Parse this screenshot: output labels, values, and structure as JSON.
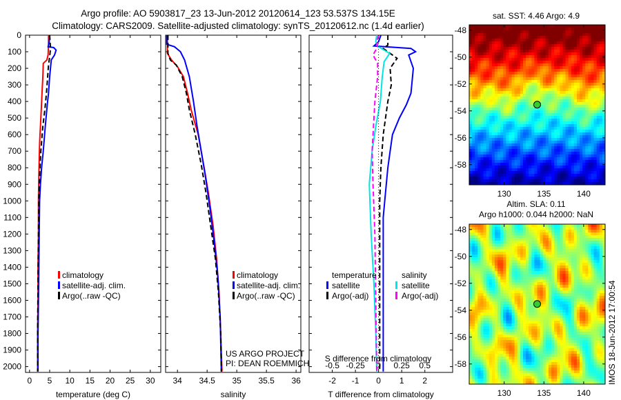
{
  "title": {
    "line1": "Argo profile: AO 5903817_23 13-Jun-2012 20120614_123 53.537S 134.15E",
    "line2": "Climatology: CARS2009. Satellite-adjusted climatology: synTS_20120612.nc (1.4d earlier)"
  },
  "colors": {
    "climatology": "#ff0000",
    "satellite": "#0000ff",
    "argo": "#000000",
    "sal_satellite": "#00e5e5",
    "sal_argo": "#ff00ff"
  },
  "credits": {
    "project": "US ARGO PROJECT",
    "pi": "PI: DEAN ROEMMICH",
    "stamp": "IMOS 18-Jun-2012 17:00:54"
  },
  "chart_data": [
    {
      "type": "line",
      "id": "temperature",
      "xlabel": "temperature (deg C)",
      "ylabel": "",
      "xlim": [
        -1,
        32.6
      ],
      "ylim": [
        0,
        2035
      ],
      "xticks": [
        0,
        5,
        10,
        15,
        20,
        25,
        30
      ],
      "yticks": [
        0,
        100,
        200,
        300,
        400,
        500,
        600,
        700,
        800,
        900,
        1000,
        1100,
        1200,
        1300,
        1400,
        1500,
        1600,
        1700,
        1800,
        1900,
        2000
      ],
      "legend": [
        "climatology",
        "satellite-adj. clim.",
        "Argo(..raw -QC)"
      ],
      "series": [
        {
          "name": "climatology",
          "color": "#ff0000",
          "dash": false,
          "x": [
            4.7,
            4.7,
            4.6,
            4.3,
            3.4,
            3.3,
            3.1,
            2.9,
            2.7,
            2.5,
            2.4,
            2.3,
            2.2,
            2.2,
            2.1,
            2.1,
            2.0,
            2.0,
            2.0
          ],
          "y": [
            0,
            60,
            120,
            150,
            170,
            250,
            350,
            450,
            550,
            650,
            750,
            850,
            1000,
            1200,
            1400,
            1600,
            1800,
            1950,
            2030
          ]
        },
        {
          "name": "satellite-adj. clim.",
          "color": "#0000ff",
          "dash": false,
          "x": [
            5.0,
            4.9,
            4.6,
            6.0,
            6.6,
            6.2,
            5.4,
            5.0,
            4.7,
            4.4,
            3.9,
            3.4,
            3.0,
            2.7,
            2.5,
            2.4,
            2.3,
            2.2,
            2.1,
            2.1
          ],
          "y": [
            0,
            40,
            70,
            75,
            90,
            120,
            150,
            250,
            350,
            420,
            550,
            700,
            800,
            900,
            1000,
            1200,
            1400,
            1600,
            1800,
            2030
          ]
        },
        {
          "name": "Argo(..raw -QC)",
          "color": "#000000",
          "dash": true,
          "x": [
            5.0,
            5.2,
            5.0,
            4.7,
            4.5,
            4.2,
            3.8,
            3.3,
            2.8,
            2.5,
            2.3,
            2.2,
            2.1,
            2.0,
            2.0
          ],
          "y": [
            0,
            80,
            130,
            180,
            250,
            350,
            450,
            550,
            700,
            850,
            1000,
            1200,
            1500,
            1800,
            2030
          ]
        }
      ]
    },
    {
      "type": "line",
      "id": "salinity",
      "xlabel": "salinity",
      "xlim": [
        33.8,
        36.08
      ],
      "ylim": [
        0,
        2035
      ],
      "xticks": [
        34,
        34.5,
        35,
        35.5,
        36
      ],
      "legend": [
        "climatology",
        "satellite-adj. clim.",
        "Argo(..raw -QC)"
      ],
      "series": [
        {
          "name": "climatology",
          "color": "#ff0000",
          "dash": false,
          "x": [
            33.83,
            33.83,
            33.9,
            34.0,
            34.1,
            34.17,
            34.23,
            34.35,
            34.45,
            34.52,
            34.6,
            34.66,
            34.7,
            34.73,
            34.75
          ],
          "y": [
            0,
            110,
            150,
            190,
            250,
            350,
            450,
            600,
            800,
            950,
            1150,
            1350,
            1550,
            1800,
            2030
          ]
        },
        {
          "name": "satellite-adj. clim.",
          "color": "#0000ff",
          "dash": false,
          "x": [
            33.82,
            33.82,
            33.95,
            34.05,
            34.12,
            34.2,
            34.27,
            34.33,
            34.4,
            34.47,
            34.55,
            34.62,
            34.68,
            34.72,
            34.74
          ],
          "y": [
            0,
            55,
            70,
            100,
            150,
            250,
            400,
            550,
            700,
            850,
            1050,
            1250,
            1450,
            1700,
            2030
          ]
        },
        {
          "name": "Argo(..raw -QC)",
          "color": "#000000",
          "dash": true,
          "x": [
            33.84,
            33.84,
            33.88,
            33.98,
            34.08,
            34.15,
            34.2,
            34.3,
            34.4,
            34.48,
            34.56,
            34.64,
            34.69,
            34.73,
            34.74
          ],
          "y": [
            0,
            110,
            150,
            180,
            250,
            350,
            450,
            600,
            780,
            950,
            1150,
            1350,
            1550,
            1800,
            2030
          ]
        }
      ]
    },
    {
      "type": "line",
      "id": "difference",
      "xlabel": "T difference from climatology",
      "x2label": "S difference from climatology",
      "xlim": [
        -3,
        3.2
      ],
      "ylim": [
        0,
        2035
      ],
      "xticks": [
        -2,
        -1,
        0,
        1,
        2
      ],
      "x2ticks": [
        -0.5,
        -0.25,
        0,
        0.25,
        0.5
      ],
      "x2tick_labels": [
        "-0.5",
        "-0.25",
        "0",
        "0.25",
        "0.5"
      ],
      "legend_headers": [
        "temperature",
        "salinity"
      ],
      "legend": [
        "satellite",
        "Argo(-adj)",
        "satellite",
        "Argo(-adj)"
      ],
      "series": [
        {
          "name": "temperature satellite",
          "axis": "T",
          "color": "#0000ff",
          "dash": false,
          "x": [
            0.1,
            0.0,
            -0.2,
            1.4,
            1.6,
            1.3,
            1.5,
            1.4,
            1.2,
            0.9,
            0.6,
            0.5,
            0.4,
            0.3,
            0.2,
            0.2,
            0.2
          ],
          "y": [
            0,
            40,
            65,
            80,
            100,
            120,
            200,
            350,
            420,
            500,
            600,
            700,
            800,
            950,
            1100,
            1500,
            2030
          ]
        },
        {
          "name": "temperature Argo(-adj)",
          "axis": "T",
          "color": "#000000",
          "dash": true,
          "x": [
            0.4,
            0.4,
            0.2,
            0.8,
            0.5,
            0.55,
            0.4,
            0.2,
            0.1,
            0.05,
            0.05,
            0.05
          ],
          "y": [
            0,
            60,
            80,
            140,
            200,
            300,
            400,
            600,
            800,
            1000,
            1500,
            2030
          ]
        },
        {
          "name": "salinity satellite",
          "axis": "S",
          "color": "#00e5e5",
          "dash": false,
          "x": [
            -0.02,
            -0.03,
            0.0,
            0.12,
            0.06,
            0.04,
            0.02,
            -0.03,
            -0.07,
            -0.1,
            -0.08,
            -0.05,
            -0.03,
            -0.02
          ],
          "y": [
            0,
            40,
            70,
            110,
            160,
            250,
            400,
            550,
            700,
            900,
            1200,
            1500,
            1800,
            2030
          ]
        },
        {
          "name": "salinity Argo(-adj)",
          "axis": "S",
          "color": "#ff00ff",
          "dash": true,
          "x": [
            0.0,
            -0.02,
            -0.01,
            -0.06,
            -0.01,
            -0.01,
            -0.04,
            -0.07,
            -0.06,
            -0.04,
            -0.03,
            -0.02
          ],
          "y": [
            0,
            40,
            70,
            120,
            170,
            250,
            400,
            700,
            900,
            1200,
            1600,
            2030
          ]
        },
        {
          "name": "zero line",
          "axis": "T",
          "color": "#000000",
          "dotted": true,
          "x": [
            0,
            0
          ],
          "y": [
            0,
            2030
          ]
        }
      ]
    },
    {
      "type": "heatmap",
      "id": "sst-map",
      "title": "sat. SST: 4.46 Argo: 4.9",
      "xlim": [
        125.6,
        142.7
      ],
      "ylim": [
        -59.5,
        -47.6
      ],
      "xticks": [
        130,
        135,
        140
      ],
      "yticks": [
        -48,
        -50,
        -52,
        -54,
        -56,
        -58
      ],
      "marker": {
        "lon": 134.15,
        "lat": -53.537
      }
    },
    {
      "type": "heatmap",
      "id": "sla-map",
      "title1": "Altim. SLA: 0.11",
      "title2": "Argo h1000: 0.044 h2000: NaN",
      "xlim": [
        125.6,
        142.7
      ],
      "ylim": [
        -59.5,
        -47.6
      ],
      "xticks": [
        130,
        135,
        140
      ],
      "yticks": [
        -48,
        -50,
        -52,
        -54,
        -56,
        -58
      ],
      "marker": {
        "lon": 134.15,
        "lat": -53.537
      }
    }
  ]
}
